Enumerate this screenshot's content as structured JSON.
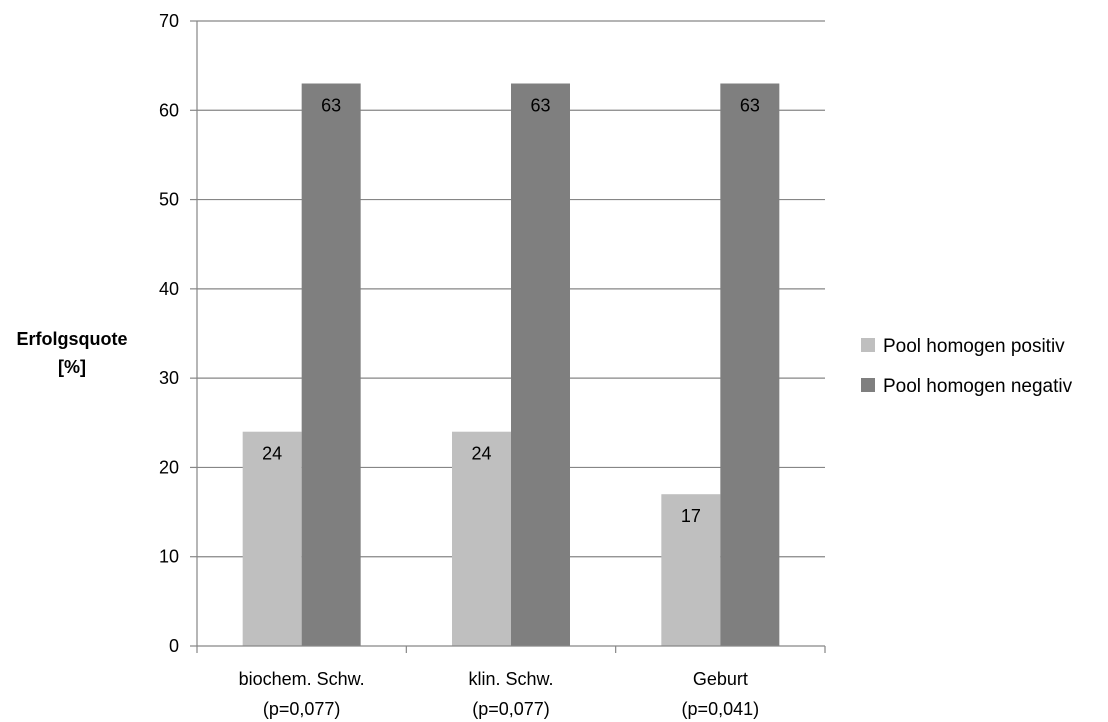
{
  "chart_data": {
    "type": "bar",
    "title": "",
    "ylabel_lines": [
      "Erfolgsquote",
      "[%]"
    ],
    "xlabel": "",
    "categories": [
      [
        "biochem. Schw.",
        "(p=0,077)"
      ],
      [
        "klin. Schw.",
        "(p=0,077)"
      ],
      [
        "Geburt",
        "(p=0,041)"
      ]
    ],
    "series": [
      {
        "name": "Pool homogen positiv",
        "color": "#bfbfbf",
        "values": [
          24,
          24,
          17
        ]
      },
      {
        "name": "Pool homogen negativ",
        "color": "#7f7f7f",
        "values": [
          63,
          63,
          63
        ]
      }
    ],
    "ylim": [
      0,
      70
    ],
    "yticks": [
      0,
      10,
      20,
      30,
      40,
      50,
      60,
      70
    ],
    "grid": true,
    "legend_position": "right",
    "data_labels": true
  }
}
